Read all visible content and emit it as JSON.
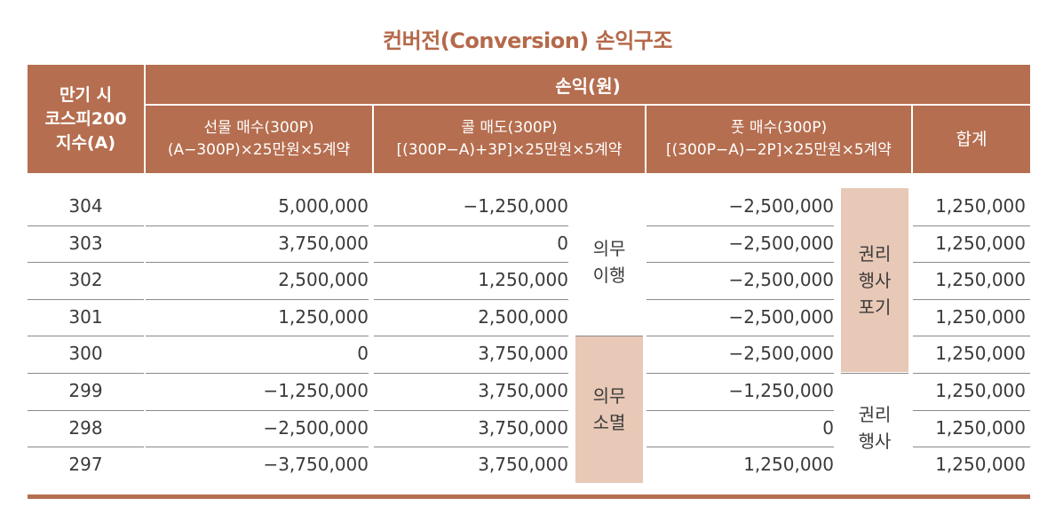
{
  "title": "컨버전(Conversion) 손익구조",
  "header": {
    "index_col": [
      "만기 시",
      "코스피200",
      "지수(A)"
    ],
    "group": "손익(원)",
    "columns": [
      {
        "name": "선물 매수(300P)",
        "formula": "(A−300P)×25만원×5계약"
      },
      {
        "name": "콜 매도(300P)",
        "formula": "[(300P−A)+3P]×25만원×5계약"
      },
      {
        "name": "풋 매수(300P)",
        "formula": "[(300P−A)−2P]×25만원×5계약"
      },
      {
        "name": "합계",
        "formula": ""
      }
    ]
  },
  "rows": [
    {
      "index": "304",
      "futures": "5,000,000",
      "call": "−1,250,000",
      "put": "−2,500,000",
      "total": "1,250,000"
    },
    {
      "index": "303",
      "futures": "3,750,000",
      "call": "0",
      "put": "−2,500,000",
      "total": "1,250,000"
    },
    {
      "index": "302",
      "futures": "2,500,000",
      "call": "1,250,000",
      "put": "−2,500,000",
      "total": "1,250,000"
    },
    {
      "index": "301",
      "futures": "1,250,000",
      "call": "2,500,000",
      "put": "−2,500,000",
      "total": "1,250,000"
    },
    {
      "index": "300",
      "futures": "0",
      "call": "3,750,000",
      "put": "−2,500,000",
      "total": "1,250,000"
    },
    {
      "index": "299",
      "futures": "−1,250,000",
      "call": "3,750,000",
      "put": "−1,250,000",
      "total": "1,250,000"
    },
    {
      "index": "298",
      "futures": "−2,500,000",
      "call": "3,750,000",
      "put": "0",
      "total": "1,250,000"
    },
    {
      "index": "297",
      "futures": "−3,750,000",
      "call": "3,750,000",
      "put": "1,250,000",
      "total": "1,250,000"
    }
  ],
  "annotations": {
    "call_exercised": [
      "의무",
      "이행"
    ],
    "call_expired": [
      "의무",
      "소멸"
    ],
    "put_abandoned": [
      "권리",
      "행사",
      "포기"
    ],
    "put_exercised": [
      "권리",
      "행사"
    ]
  },
  "colors": {
    "header": "#b56e4f",
    "shade": "#e8c8b6",
    "title": "#b5694a"
  }
}
